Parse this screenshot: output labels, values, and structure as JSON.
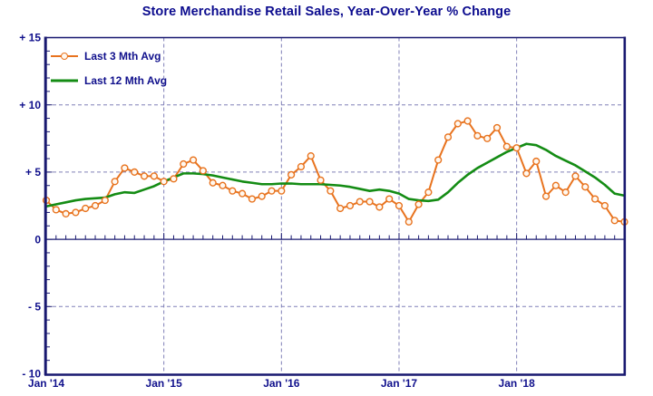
{
  "colors": {
    "navy_axis": "#191970",
    "navy_text": "#10108c",
    "grid": "#8080b8",
    "orange": "#e8731e",
    "green": "#148c14",
    "marker_fill": "#fff8f0",
    "background": "#ffffff"
  },
  "legend": {
    "position": "top-left"
  },
  "chart_data": {
    "type": "line",
    "title": "Store Merchandise Retail Sales, Year-Over-Year % Change",
    "x_unit": "month",
    "x_range": [
      "Jan '14",
      "Dec '18"
    ],
    "ylim": [
      -10,
      15
    ],
    "grid": {
      "h_dashed_values": [
        10,
        5,
        -5
      ],
      "v_dashed_month_indices": [
        12,
        24,
        36,
        48
      ],
      "zero_line": true
    },
    "y_ticks": [
      {
        "value": 15,
        "label": "+ 15"
      },
      {
        "value": 10,
        "label": "+ 10"
      },
      {
        "value": 5,
        "label": "+ 5"
      },
      {
        "value": 0,
        "label": "0"
      },
      {
        "value": -5,
        "label": "- 5"
      },
      {
        "value": -10,
        "label": "- 10"
      }
    ],
    "x_ticks": [
      {
        "month_index": 0,
        "label": "Jan '14"
      },
      {
        "month_index": 12,
        "label": "Jan '15"
      },
      {
        "month_index": 24,
        "label": "Jan '16"
      },
      {
        "month_index": 36,
        "label": "Jan '17"
      },
      {
        "month_index": 48,
        "label": "Jan '18"
      }
    ],
    "series": [
      {
        "name": "Last 3 Mth Avg",
        "color": "#e8731e",
        "marker": "circle",
        "values": [
          2.9,
          2.2,
          1.9,
          2.0,
          2.3,
          2.5,
          2.9,
          4.3,
          5.3,
          5.0,
          4.7,
          4.7,
          4.3,
          4.5,
          5.6,
          5.9,
          5.1,
          4.2,
          4.0,
          3.6,
          3.4,
          3.0,
          3.2,
          3.6,
          3.6,
          4.8,
          5.4,
          6.2,
          4.4,
          3.6,
          2.3,
          2.5,
          2.8,
          2.8,
          2.4,
          3.0,
          2.5,
          1.3,
          2.6,
          3.5,
          5.9,
          7.6,
          8.6,
          8.8,
          7.7,
          7.5,
          8.3,
          6.9,
          6.8,
          4.9,
          5.8,
          3.2,
          4.0,
          3.5,
          4.7,
          3.9,
          3.0,
          2.5,
          1.4,
          1.3
        ]
      },
      {
        "name": "Last 12 Mth Avg",
        "color": "#148c14",
        "marker": "none",
        "values": [
          2.45,
          2.6,
          2.75,
          2.9,
          3.0,
          3.05,
          3.1,
          3.35,
          3.5,
          3.45,
          3.7,
          3.95,
          4.3,
          4.6,
          4.9,
          4.9,
          4.85,
          4.75,
          4.6,
          4.45,
          4.3,
          4.2,
          4.1,
          4.1,
          4.15,
          4.15,
          4.1,
          4.1,
          4.1,
          4.05,
          4.0,
          3.9,
          3.75,
          3.6,
          3.7,
          3.6,
          3.4,
          3.0,
          2.9,
          2.85,
          2.95,
          3.5,
          4.2,
          4.8,
          5.3,
          5.7,
          6.1,
          6.5,
          6.8,
          7.1,
          7.0,
          6.65,
          6.2,
          5.85,
          5.5,
          5.05,
          4.6,
          4.05,
          3.4,
          3.25
        ]
      }
    ]
  }
}
